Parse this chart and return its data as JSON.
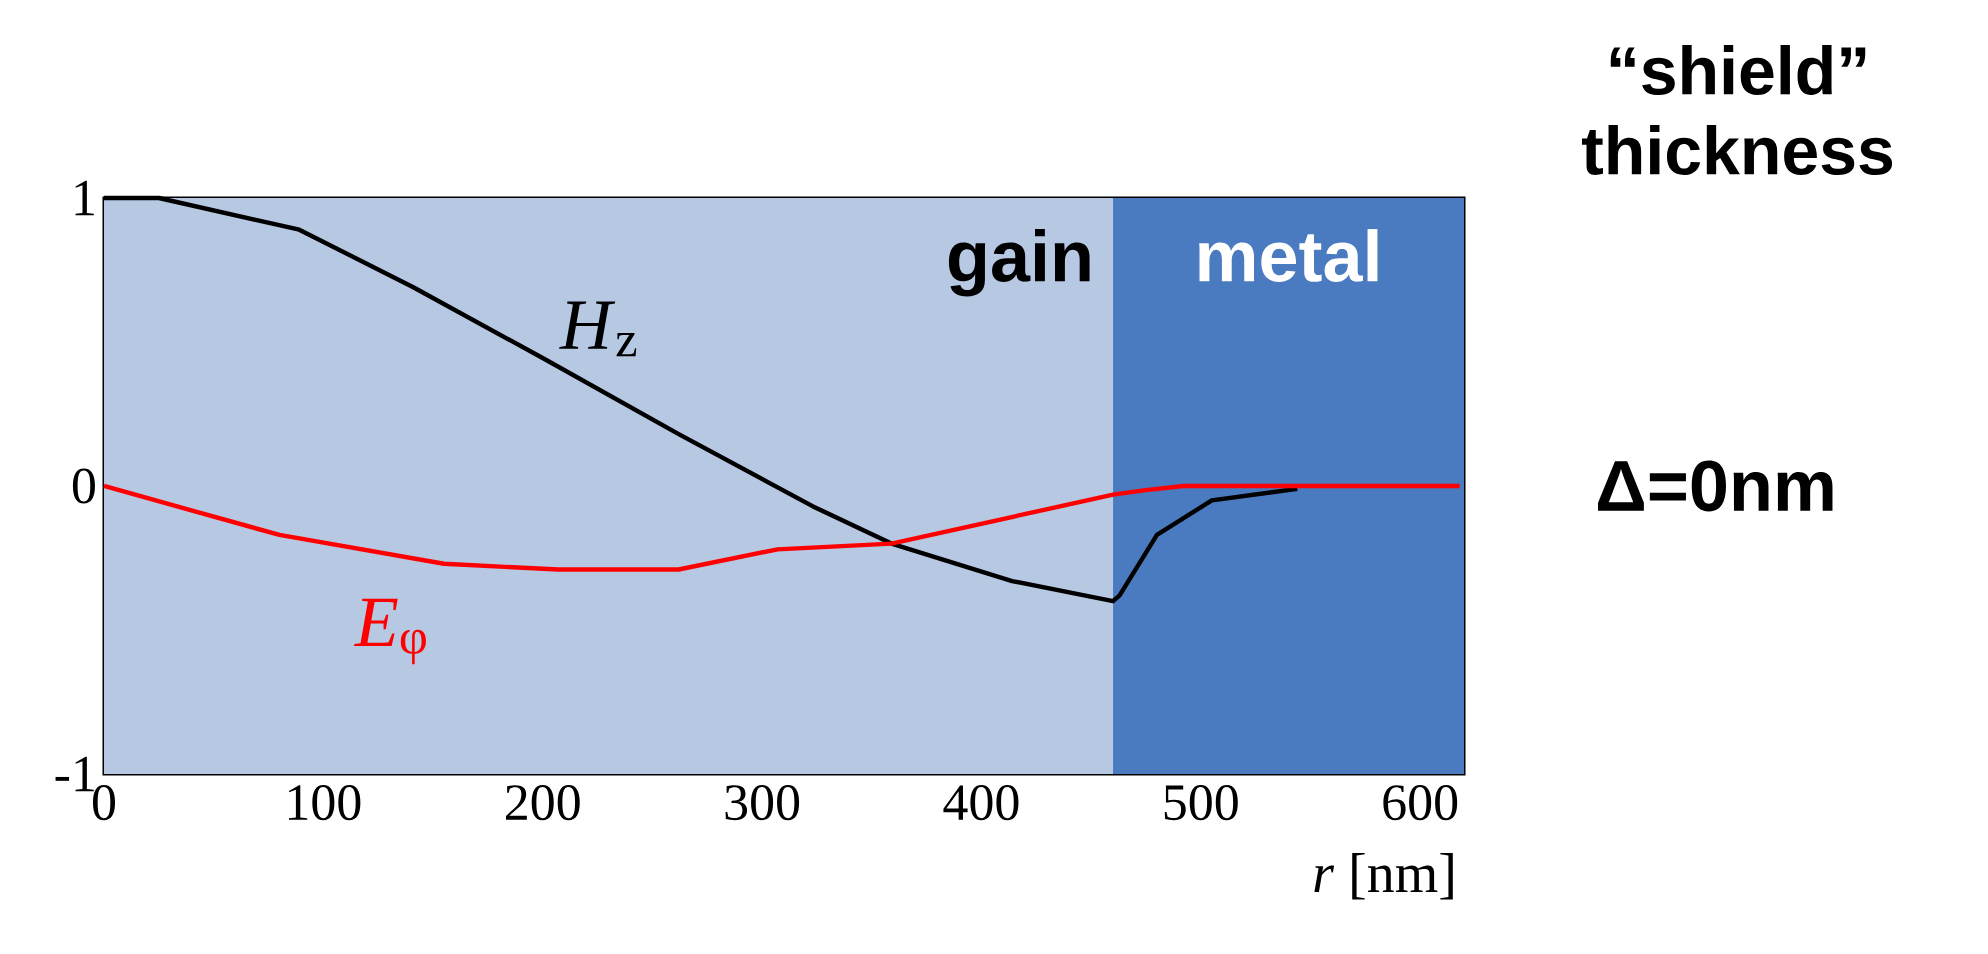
{
  "chart_data": {
    "type": "line",
    "xlabel": "*r* [nm]",
    "xlim": [
      0,
      620
    ],
    "ylim": [
      -1,
      1
    ],
    "xticks": [
      0,
      100,
      200,
      300,
      400,
      500,
      600
    ],
    "yticks": [
      -1,
      0,
      1
    ],
    "marker": "none",
    "line_style": "solid",
    "series": [
      {
        "name": "*H*$_{z}$",
        "color": "#000000",
        "x": [
          0,
          25,
          89,
          141,
          201,
          262,
          323,
          359,
          414,
          460,
          463,
          480,
          505,
          544
        ],
        "values": [
          1.0,
          1.0,
          0.89,
          0.69,
          0.44,
          0.18,
          -0.07,
          -0.2,
          -0.33,
          -0.4,
          -0.38,
          -0.17,
          -0.05,
          -0.01
        ]
      },
      {
        "name": "*E*$_{φ}$",
        "color": "#ff0000",
        "x": [
          0,
          80,
          155,
          207,
          262,
          307,
          359,
          460,
          474,
          492,
          618
        ],
        "values": [
          0,
          -0.17,
          -0.27,
          -0.29,
          -0.29,
          -0.22,
          -0.2,
          -0.03,
          -0.015,
          0,
          0
        ]
      }
    ],
    "bands": [
      {
        "axis": "x",
        "from": 0,
        "to": 460,
        "label": "gain",
        "color": "#b7c8e3"
      },
      {
        "axis": "x",
        "from": 460,
        "to": 620,
        "label": "metal",
        "color": "#4a7abf"
      }
    ],
    "annotations": [
      "“shield” thickness",
      "Δ=0nm"
    ]
  }
}
